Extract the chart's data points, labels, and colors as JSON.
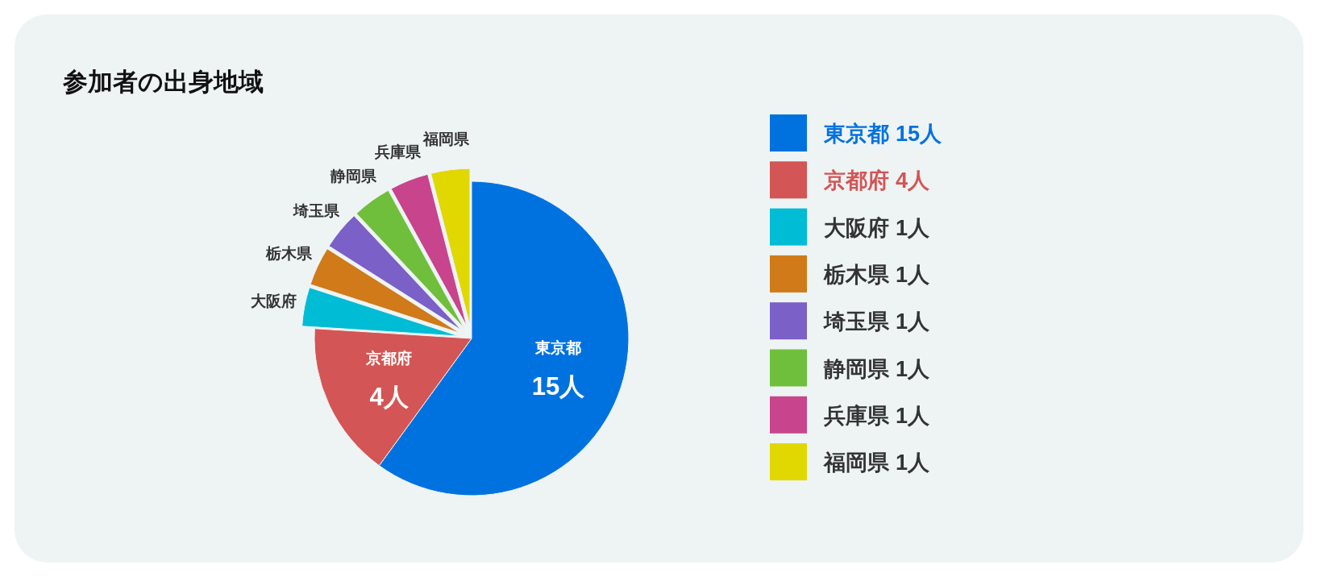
{
  "chart_data": {
    "type": "pie",
    "title": "参加者の出身地域",
    "categories": [
      "東京都",
      "京都府",
      "大阪府",
      "栃木県",
      "埼玉県",
      "静岡県",
      "兵庫県",
      "福岡県"
    ],
    "values": [
      15,
      4,
      1,
      1,
      1,
      1,
      1,
      1
    ],
    "value_labels": [
      "15人",
      "4人",
      "1人",
      "1人",
      "1人",
      "1人",
      "1人",
      "1人"
    ],
    "colors": [
      "#0072e0",
      "#d35555",
      "#00bcd4",
      "#d07a1a",
      "#7b60c8",
      "#70bf3c",
      "#c8448c",
      "#e0d800"
    ],
    "legend": "right"
  }
}
